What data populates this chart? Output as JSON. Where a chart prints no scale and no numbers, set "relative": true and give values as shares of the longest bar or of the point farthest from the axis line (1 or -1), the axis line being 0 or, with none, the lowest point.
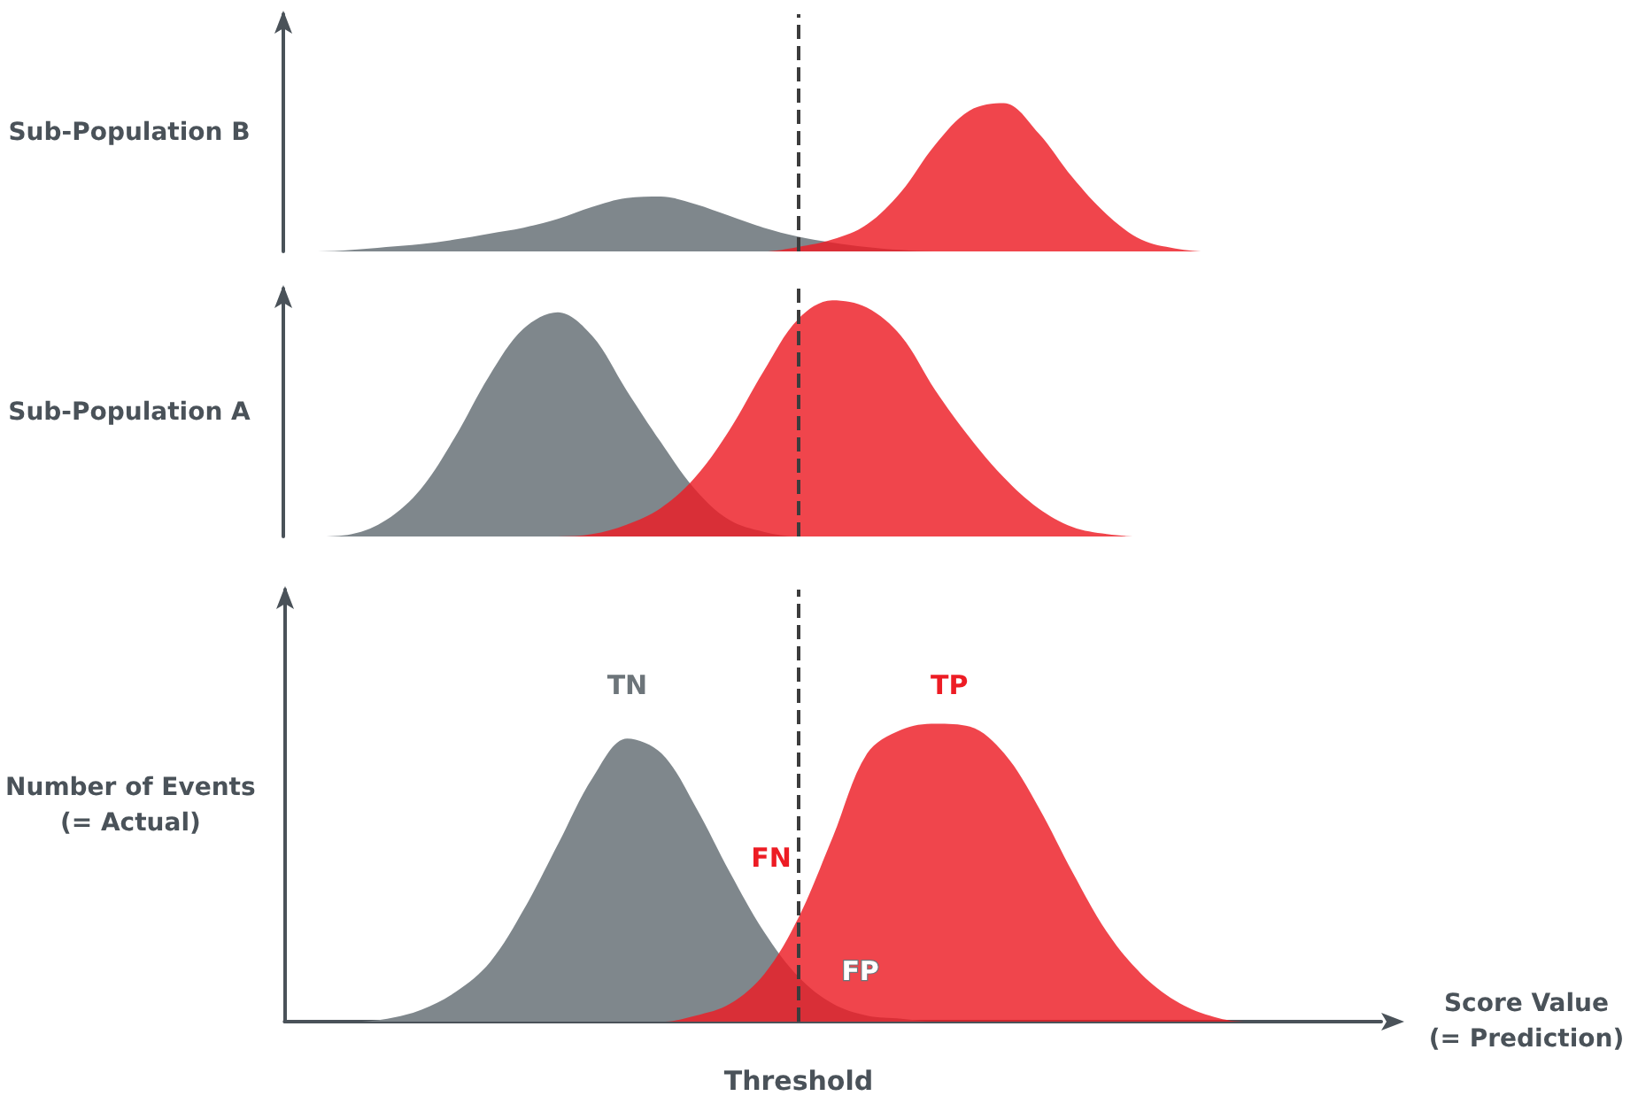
{
  "chart_data": [
    {
      "type": "area",
      "relative": true,
      "ylabel": "Sub-Population B",
      "categories": [
        null,
        null,
        null,
        null,
        null,
        null,
        null,
        null,
        null,
        null,
        null,
        null,
        null,
        null,
        null,
        null,
        null,
        null,
        null,
        null,
        null,
        null,
        null,
        null,
        null,
        null,
        null,
        null,
        null,
        null,
        null,
        null,
        null
      ],
      "series": [
        {
          "color": "#7f878c",
          "values": [
            0,
            0,
            0.01,
            0.03,
            0.05,
            0.08,
            0.12,
            0.16,
            0.22,
            0.3,
            0.36,
            0.37,
            0.32,
            0.24,
            0.16,
            0.1,
            0.06,
            0.03,
            0.01,
            0,
            0,
            0,
            0,
            0,
            0,
            0,
            0,
            0,
            0,
            0,
            0,
            0,
            0
          ]
        },
        {
          "color": "#ed1c24",
          "values": [
            0,
            0,
            0,
            0,
            0,
            0,
            0,
            0,
            0,
            0,
            0,
            0,
            0,
            0,
            0,
            0.03,
            0.08,
            0.18,
            0.4,
            0.72,
            0.95,
            1,
            0.8,
            0.5,
            0.25,
            0.08,
            0.02,
            0,
            0,
            0,
            0,
            0,
            0
          ]
        }
      ],
      "grid": false
    },
    {
      "type": "area",
      "relative": true,
      "ylabel": "Sub-Population A",
      "categories": [
        null,
        null,
        null,
        null,
        null,
        null,
        null,
        null,
        null,
        null,
        null,
        null,
        null,
        null,
        null,
        null,
        null,
        null,
        null,
        null,
        null,
        null,
        null,
        null,
        null,
        null,
        null,
        null,
        null,
        null,
        null,
        null,
        null
      ],
      "series": [
        {
          "color": "#7f878c",
          "values": [
            0,
            0,
            0.01,
            0.07,
            0.2,
            0.42,
            0.68,
            0.88,
            0.95,
            0.85,
            0.62,
            0.4,
            0.2,
            0.07,
            0.02,
            0,
            0,
            0,
            0,
            0,
            0,
            0,
            0,
            0,
            0,
            0,
            0,
            0,
            0,
            0,
            0,
            0,
            0
          ]
        },
        {
          "color": "#ed1c24",
          "values": [
            0,
            0,
            0,
            0,
            0,
            0,
            0,
            0,
            0,
            0.01,
            0.05,
            0.12,
            0.25,
            0.45,
            0.7,
            0.92,
            1,
            0.97,
            0.85,
            0.62,
            0.42,
            0.25,
            0.12,
            0.04,
            0.01,
            0,
            0,
            0,
            0,
            0,
            0,
            0,
            0
          ]
        }
      ],
      "grid": false
    },
    {
      "type": "area",
      "relative": true,
      "ylabel": "Number of Events (= Actual)",
      "xlabel": "Score Value (= Prediction)",
      "categories": [
        null,
        null,
        null,
        null,
        null,
        null,
        null,
        null,
        null,
        null,
        null,
        null,
        null,
        null,
        null,
        null,
        null,
        null,
        null,
        null,
        null,
        null,
        null,
        null,
        null,
        null,
        null,
        null,
        null,
        null,
        null,
        null,
        null
      ],
      "series": [
        {
          "color": "#7f878c",
          "values": [
            0,
            0,
            0,
            0.01,
            0.04,
            0.1,
            0.2,
            0.38,
            0.6,
            0.82,
            0.95,
            0.9,
            0.72,
            0.5,
            0.3,
            0.15,
            0.06,
            0.02,
            0.01,
            0,
            0,
            0,
            0,
            0,
            0,
            0,
            0,
            0,
            0,
            0,
            0,
            0,
            0
          ]
        },
        {
          "color": "#ed1c24",
          "values": [
            0,
            0,
            0,
            0,
            0,
            0,
            0,
            0,
            0,
            0,
            0,
            0,
            0.02,
            0.06,
            0.16,
            0.35,
            0.62,
            0.9,
            0.98,
            1,
            0.99,
            0.9,
            0.72,
            0.5,
            0.3,
            0.16,
            0.07,
            0.02,
            0,
            0,
            0,
            0,
            0
          ]
        }
      ],
      "annotations": [
        "TN",
        "TP",
        "FN",
        "FP",
        "Threshold"
      ],
      "grid": false
    }
  ]
}
